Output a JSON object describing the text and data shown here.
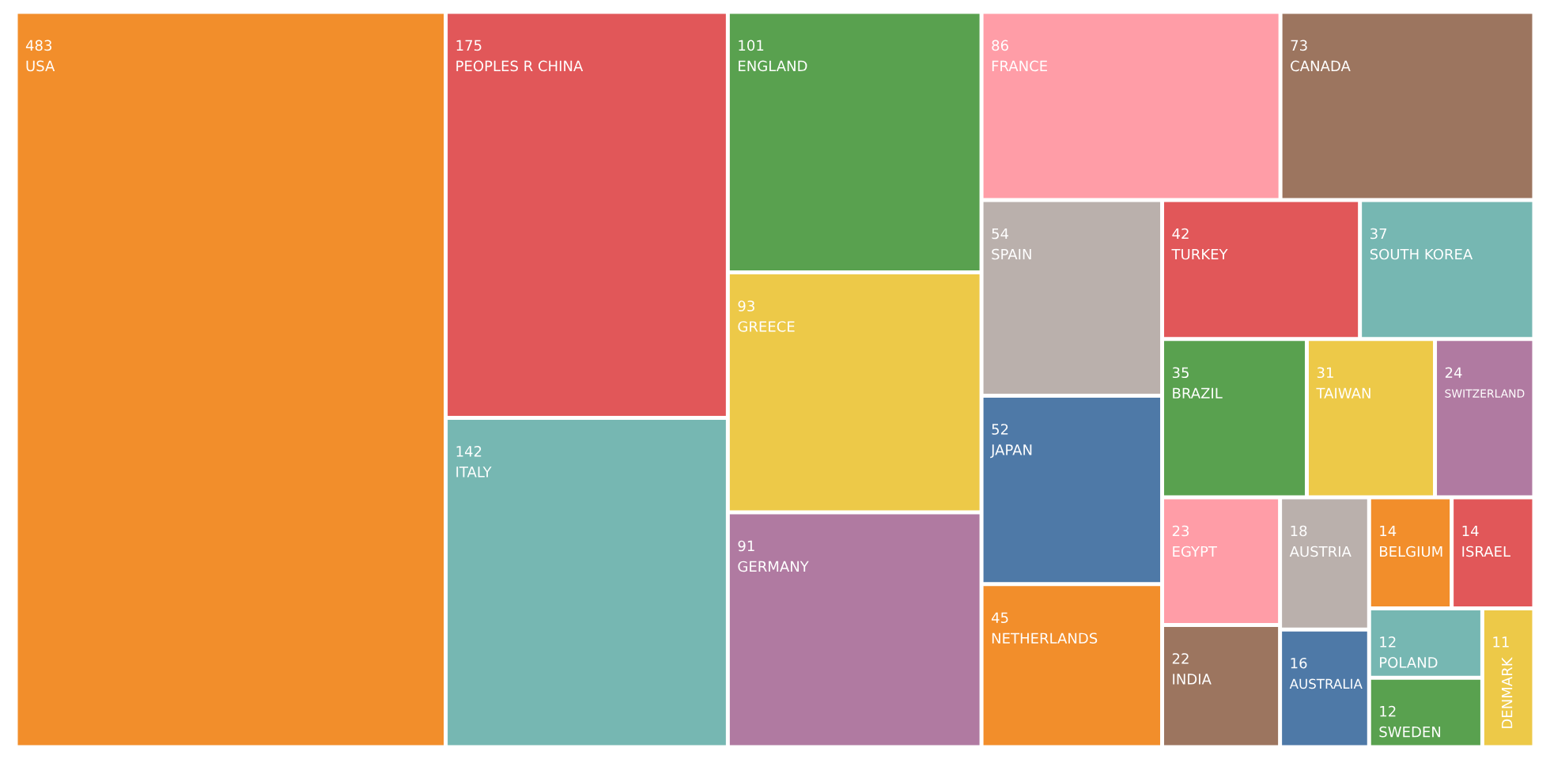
{
  "chart_data": {
    "type": "other",
    "categories": [
      "USA",
      "PEOPLES R CHINA",
      "ITALY",
      "ENGLAND",
      "GREECE",
      "GERMANY",
      "FRANCE",
      "CANADA",
      "SPAIN",
      "JAPAN",
      "NETHERLANDS",
      "TURKEY",
      "SOUTH KOREA",
      "BRAZIL",
      "TAIWAN",
      "SWITZERLAND",
      "EGYPT",
      "INDIA",
      "AUSTRIA",
      "AUSTRALIA",
      "BELGIUM",
      "ISRAEL",
      "POLAND",
      "SWEDEN",
      "DENMARK"
    ],
    "values": [
      483,
      175,
      142,
      101,
      93,
      91,
      86,
      73,
      54,
      52,
      45,
      42,
      37,
      35,
      31,
      24,
      23,
      22,
      18,
      16,
      14,
      14,
      12,
      12,
      11
    ],
    "colors": [
      "#f28e2b",
      "#e15759",
      "#76b7b2",
      "#59a14f",
      "#edc948",
      "#b07aa1",
      "#ff9da7",
      "#9c755f",
      "#bab0ac",
      "#4e79a7",
      "#f28e2b",
      "#e15759",
      "#76b7b2",
      "#59a14f",
      "#edc948",
      "#b07aa1",
      "#ff9da7",
      "#9c755f",
      "#bab0ac",
      "#4e79a7",
      "#f28e2b",
      "#e15759",
      "#76b7b2",
      "#59a14f",
      "#edc948"
    ],
    "data_labels": true
  }
}
